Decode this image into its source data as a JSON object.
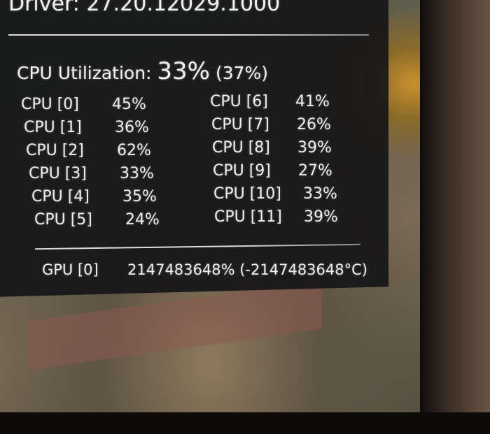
{
  "overlay": {
    "driver": "Driver: 27.20.12029.1000",
    "cpu_label": "CPU Utilization:",
    "cpu_total": "33%",
    "cpu_total_alt": "(37%)",
    "cores_left": [
      {
        "label": "CPU [0]",
        "value": "45%"
      },
      {
        "label": "CPU [1]",
        "value": "36%"
      },
      {
        "label": "CPU [2]",
        "value": "62%"
      },
      {
        "label": "CPU [3]",
        "value": "33%"
      },
      {
        "label": "CPU [4]",
        "value": "35%"
      },
      {
        "label": "CPU [5]",
        "value": "24%"
      }
    ],
    "cores_right": [
      {
        "label": "CPU [6]",
        "value": "41%"
      },
      {
        "label": "CPU [7]",
        "value": "26%"
      },
      {
        "label": "CPU [8]",
        "value": "39%"
      },
      {
        "label": "CPU [9]",
        "value": "27%"
      },
      {
        "label": "CPU [10]",
        "value": "33%"
      },
      {
        "label": "CPU [11]",
        "value": "39%"
      }
    ],
    "gpu_label": "GPU [0]",
    "gpu_value": "2147483648% (-2147483648°C)"
  }
}
